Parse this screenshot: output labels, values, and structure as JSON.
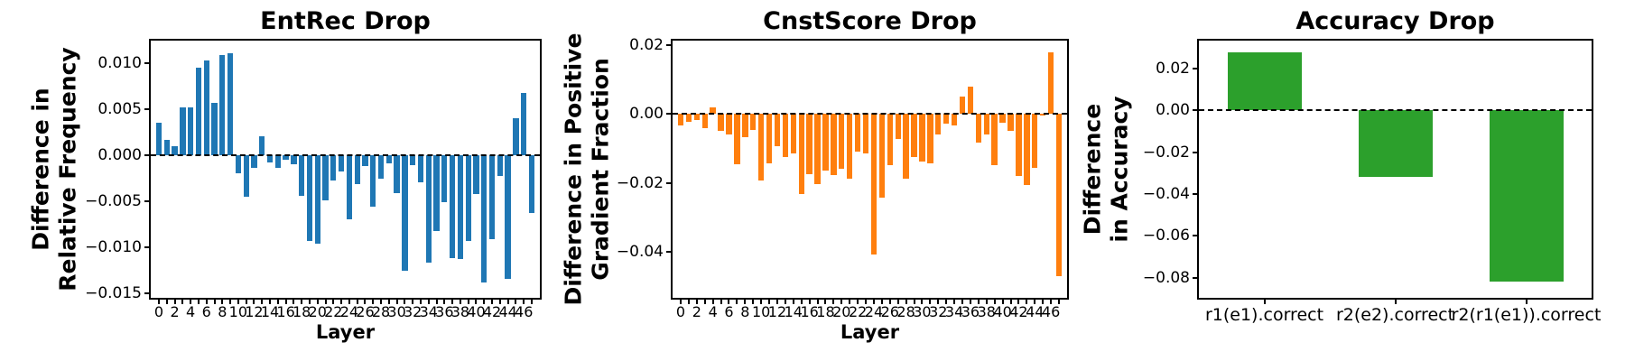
{
  "figure": {
    "background": "#ffffff"
  },
  "chart_data": [
    {
      "type": "bar",
      "title": "EntRec Drop",
      "ylabel_lines": [
        "Difference in",
        "Relative Frequency"
      ],
      "xlabel": "Layer",
      "bar_color": "#1f77b4",
      "ylim": [
        -0.0155,
        0.0124
      ],
      "yticks": [
        0.01,
        0.005,
        0.0,
        -0.005,
        -0.01,
        -0.015
      ],
      "ytick_labels": [
        "0.010",
        "0.005",
        "0.000",
        "−0.005",
        "−0.010",
        "−0.015"
      ],
      "x": [
        0,
        1,
        2,
        3,
        4,
        5,
        6,
        7,
        8,
        9,
        10,
        11,
        12,
        13,
        14,
        15,
        16,
        17,
        18,
        19,
        20,
        21,
        22,
        23,
        24,
        25,
        26,
        27,
        28,
        29,
        30,
        31,
        32,
        33,
        34,
        35,
        36,
        37,
        38,
        39,
        40,
        41,
        42,
        43,
        44,
        45,
        46,
        47
      ],
      "xtick_labels": [
        "0",
        "2",
        "4",
        "6",
        "8",
        "10",
        "12",
        "14",
        "16",
        "18",
        "20",
        "22",
        "24",
        "26",
        "28",
        "30",
        "32",
        "34",
        "36",
        "38",
        "40",
        "42",
        "44",
        "46"
      ],
      "values": [
        0.0035,
        0.0016,
        0.0009,
        0.0052,
        0.0052,
        0.0095,
        0.0102,
        0.0056,
        0.0108,
        0.011,
        -0.002,
        -0.0045,
        -0.0014,
        0.002,
        -0.0008,
        -0.0014,
        -0.0005,
        -0.001,
        -0.0044,
        -0.0093,
        -0.0096,
        -0.0049,
        -0.0028,
        -0.0018,
        -0.007,
        -0.0032,
        -0.0012,
        -0.0056,
        -0.0026,
        -0.0009,
        -0.0041,
        -0.0126,
        -0.0011,
        -0.003,
        -0.0117,
        -0.0083,
        -0.0051,
        -0.0112,
        -0.0113,
        -0.0093,
        -0.0042,
        -0.0138,
        -0.0091,
        -0.0023,
        -0.0134,
        0.004,
        0.0067,
        -0.0063
      ],
      "zero_line": "dashed",
      "grid": false,
      "legend": false
    },
    {
      "type": "bar",
      "title": "CnstScore Drop",
      "ylabel_lines": [
        "Difference in Positive",
        "Gradient Fraction"
      ],
      "xlabel": "Layer",
      "bar_color": "#ff7f0e",
      "ylim": [
        -0.0533,
        0.0213
      ],
      "yticks": [
        0.02,
        0.0,
        -0.02,
        -0.04
      ],
      "ytick_labels": [
        "0.02",
        "0.00",
        "−0.02",
        "−0.04"
      ],
      "x": [
        0,
        1,
        2,
        3,
        4,
        5,
        6,
        7,
        8,
        9,
        10,
        11,
        12,
        13,
        14,
        15,
        16,
        17,
        18,
        19,
        20,
        21,
        22,
        23,
        24,
        25,
        26,
        27,
        28,
        29,
        30,
        31,
        32,
        33,
        34,
        35,
        36,
        37,
        38,
        39,
        40,
        41,
        42,
        43,
        44,
        45,
        46,
        47
      ],
      "xtick_labels": [
        "0",
        "2",
        "4",
        "6",
        "8",
        "10",
        "12",
        "14",
        "16",
        "18",
        "20",
        "22",
        "24",
        "26",
        "28",
        "30",
        "32",
        "34",
        "36",
        "38",
        "40",
        "42",
        "44",
        "46"
      ],
      "values": [
        -0.0034,
        -0.0023,
        -0.0018,
        -0.004,
        0.0018,
        -0.0048,
        -0.006,
        -0.0146,
        -0.0068,
        -0.0046,
        -0.0193,
        -0.0142,
        -0.0094,
        -0.0124,
        -0.0114,
        -0.0231,
        -0.0174,
        -0.0202,
        -0.0165,
        -0.0176,
        -0.016,
        -0.0188,
        -0.011,
        -0.0115,
        -0.0408,
        -0.0243,
        -0.0147,
        -0.0073,
        -0.0188,
        -0.0124,
        -0.0138,
        -0.0142,
        -0.006,
        -0.0028,
        -0.0032,
        0.005,
        0.008,
        -0.0083,
        -0.006,
        -0.0147,
        -0.0025,
        -0.005,
        -0.0179,
        -0.0206,
        -0.0156,
        -0.0005,
        0.018,
        -0.047
      ],
      "zero_line": "dashed",
      "grid": false,
      "legend": false
    },
    {
      "type": "bar",
      "title": "Accuracy Drop",
      "ylabel_lines": [
        "Difference",
        "in Accuracy"
      ],
      "xlabel": "",
      "bar_color": "#2ca02c",
      "ylim": [
        -0.0897,
        0.0334
      ],
      "yticks": [
        0.02,
        0.0,
        -0.02,
        -0.04,
        -0.06,
        -0.08
      ],
      "ytick_labels": [
        "0.02",
        "0.00",
        "−0.02",
        "−0.04",
        "−0.06",
        "−0.08"
      ],
      "categories": [
        "r1(e1).correct",
        "r2(e2).correct",
        "r2(r1(e1)).correct"
      ],
      "values": [
        0.028,
        -0.032,
        -0.082
      ],
      "zero_line": "dashed",
      "grid": false,
      "legend": false
    }
  ]
}
